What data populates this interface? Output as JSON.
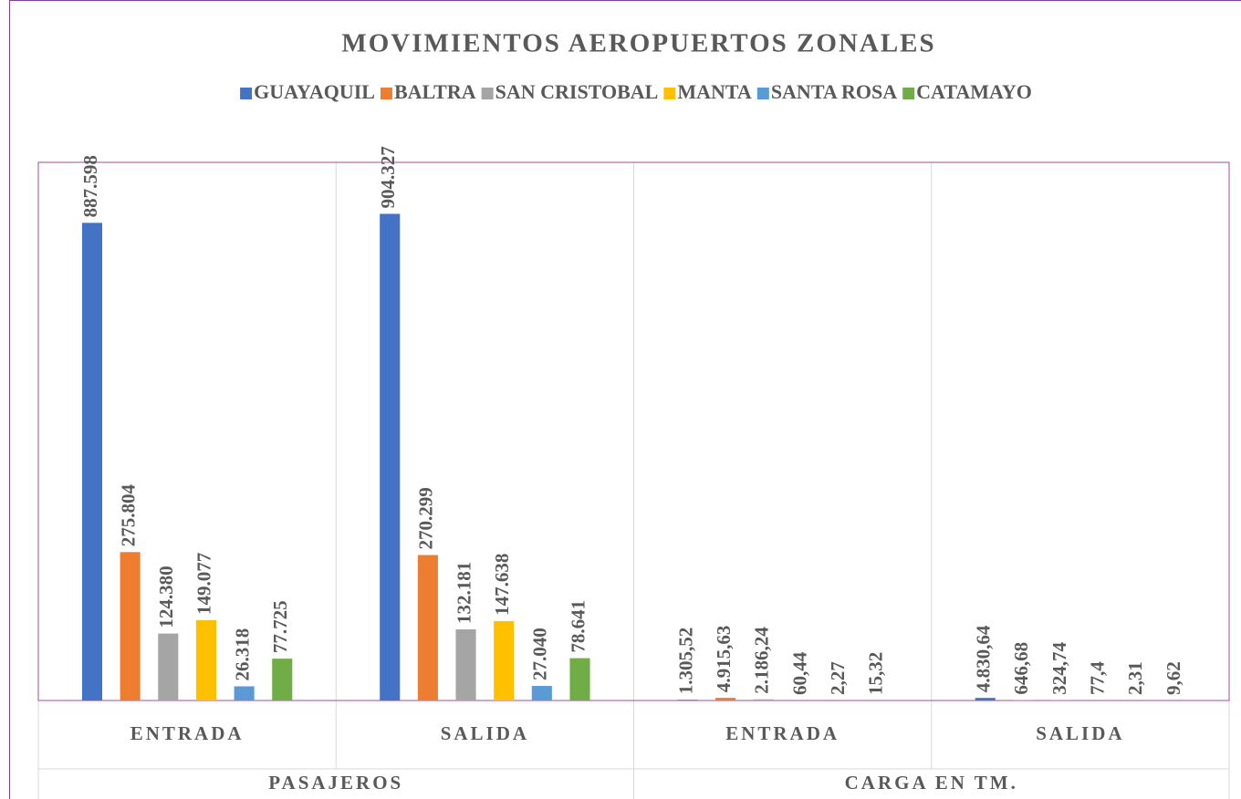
{
  "chart_data": {
    "type": "bar",
    "title": "MOVIMIENTOS AEROPUERTOS ZONALES",
    "category_groups": [
      {
        "name": "PASAJEROS",
        "categories": [
          "ENTRADA",
          "SALIDA"
        ]
      },
      {
        "name": "CARGA EN TM.",
        "categories": [
          "ENTRADA",
          "SALIDA"
        ]
      }
    ],
    "ylim": [
      0,
      1000000
    ],
    "series": [
      {
        "name": "GUAYAQUIL",
        "color": "#4472C4",
        "values": [
          887598,
          904327,
          1305.52,
          4830.64
        ],
        "value_labels": [
          "887.598",
          "904.327",
          "1.305,52",
          "4.830,64"
        ]
      },
      {
        "name": "BALTRA",
        "color": "#ED7D31",
        "values": [
          275804,
          270299,
          4915.63,
          646.68
        ],
        "value_labels": [
          "275.804",
          "270.299",
          "4.915,63",
          "646,68"
        ]
      },
      {
        "name": "SAN CRISTOBAL",
        "color": "#A5A5A5",
        "values": [
          124380,
          132181,
          2186.24,
          324.74
        ],
        "value_labels": [
          "124.380",
          "132.181",
          "2.186,24",
          "324,74"
        ]
      },
      {
        "name": "MANTA",
        "color": "#FFC000",
        "values": [
          149077,
          147638,
          60.44,
          77.4
        ],
        "value_labels": [
          "149.077",
          "147.638",
          "60,44",
          "77,4"
        ]
      },
      {
        "name": "SANTA ROSA",
        "color": "#5B9BD5",
        "values": [
          26318,
          27040,
          2.27,
          2.31
        ],
        "value_labels": [
          "26.318",
          "27.040",
          "2,27",
          "2,31"
        ]
      },
      {
        "name": "CATAMAYO",
        "color": "#70AD47",
        "values": [
          77725,
          78641,
          15.32,
          9.62
        ],
        "value_labels": [
          "77.725",
          "78.641",
          "15,32",
          "9,62"
        ]
      }
    ]
  }
}
